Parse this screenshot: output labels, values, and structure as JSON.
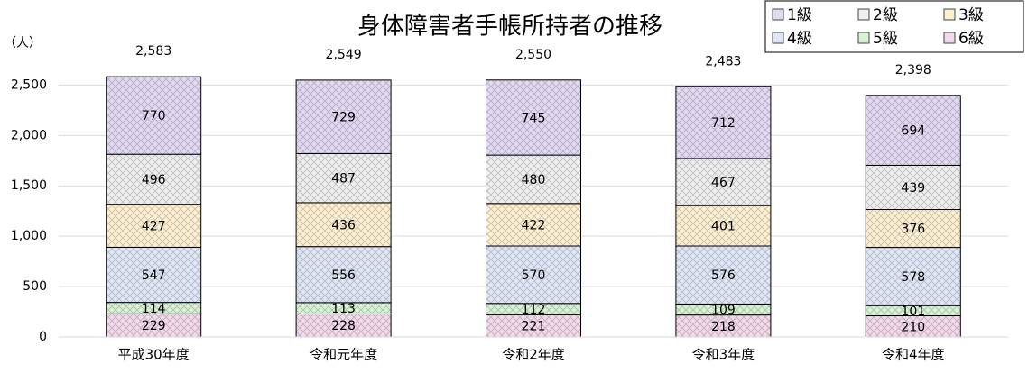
{
  "chart_data": {
    "type": "stacked_bar",
    "title": "身体障害者手帳所持者の推移",
    "y_unit": "（人）",
    "categories": [
      "平成30年度",
      "令和元年度",
      "令和2年度",
      "令和3年度",
      "令和4年度"
    ],
    "series": [
      {
        "name": "6級",
        "color": "#f2d9ec",
        "values": [
          229,
          228,
          221,
          218,
          210
        ]
      },
      {
        "name": "5級",
        "color": "#d9f2d6",
        "values": [
          114,
          113,
          112,
          109,
          101
        ]
      },
      {
        "name": "4級",
        "color": "#dfe6f5",
        "values": [
          547,
          556,
          570,
          576,
          578
        ]
      },
      {
        "name": "3級",
        "color": "#fdf0d2",
        "values": [
          427,
          436,
          422,
          401,
          376
        ]
      },
      {
        "name": "2級",
        "color": "#eeeeee",
        "values": [
          496,
          487,
          480,
          467,
          439
        ]
      },
      {
        "name": "1級",
        "color": "#e3d9f3",
        "values": [
          770,
          729,
          745,
          712,
          694
        ]
      }
    ],
    "totals": [
      2583,
      2549,
      2550,
      2483,
      2398
    ],
    "totals_labels": [
      "2,583",
      "2,549",
      "2,550",
      "2,483",
      "2,398"
    ],
    "legend_order": [
      5,
      4,
      3,
      2,
      1,
      0
    ],
    "ylim": [
      0,
      2700
    ],
    "yticks": [
      0,
      500,
      {
        "value": 1000,
        "label": "1,000"
      },
      {
        "value": 1500,
        "label": "1,500"
      },
      {
        "value": 2000,
        "label": "2,000"
      },
      {
        "value": 2500,
        "label": "2,500"
      }
    ],
    "grid": true,
    "legend": "top-right"
  }
}
